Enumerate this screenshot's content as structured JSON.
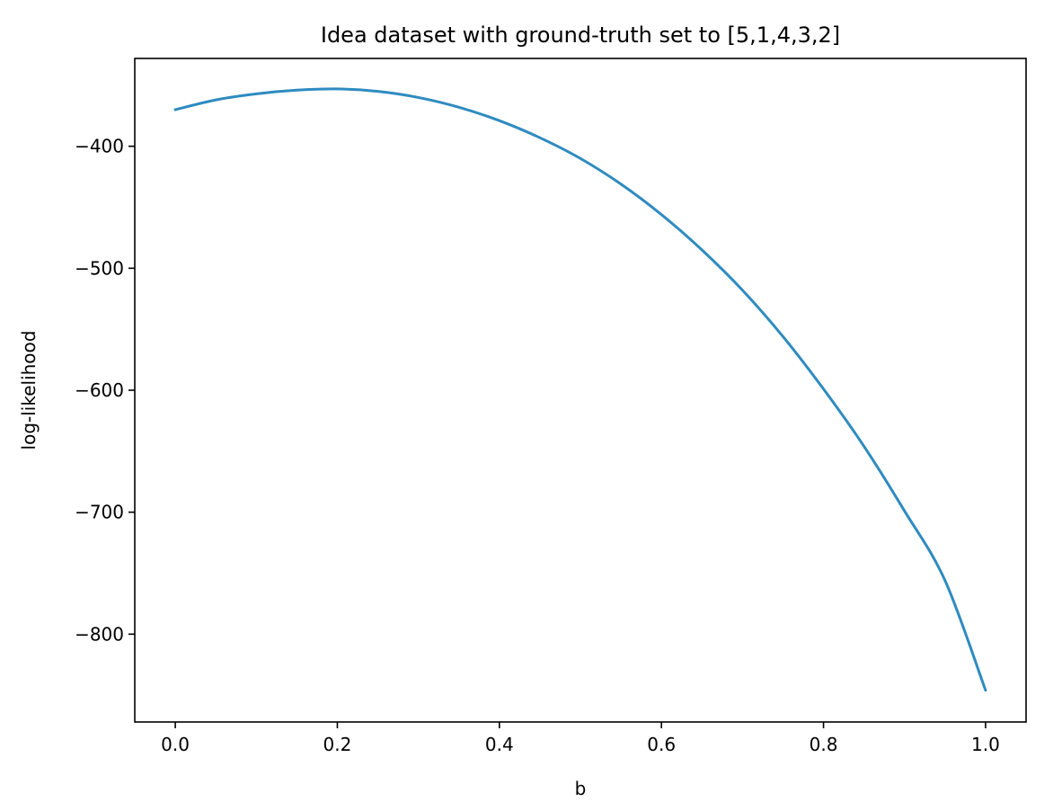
{
  "chart_data": {
    "type": "line",
    "title": "Idea dataset with ground-truth set to [5,1,4,3,2]",
    "xlabel": "b",
    "ylabel": "log-likelihood",
    "xlim": [
      -0.05,
      1.05
    ],
    "ylim": [
      -872,
      -328
    ],
    "grid": false,
    "x_ticks": [
      0.0,
      0.2,
      0.4,
      0.6,
      0.8,
      1.0
    ],
    "x_tick_labels": [
      "0.0",
      "0.2",
      "0.4",
      "0.6",
      "0.8",
      "1.0"
    ],
    "y_ticks": [
      -400,
      -500,
      -600,
      -700,
      -800
    ],
    "y_tick_labels": [
      "−400",
      "−500",
      "−600",
      "−700",
      "−800"
    ],
    "series": [
      {
        "color": "#2e8bc0",
        "x": [
          0.0,
          0.05,
          0.1,
          0.15,
          0.2,
          0.25,
          0.3,
          0.35,
          0.4,
          0.45,
          0.5,
          0.55,
          0.6,
          0.65,
          0.7,
          0.75,
          0.8,
          0.85,
          0.9,
          0.95,
          1.0
        ],
        "y": [
          -370,
          -362,
          -357,
          -354,
          -353,
          -355,
          -360,
          -368,
          -379,
          -393,
          -410,
          -431,
          -456,
          -485,
          -518,
          -556,
          -599,
          -646,
          -699,
          -756,
          -846
        ]
      }
    ]
  }
}
